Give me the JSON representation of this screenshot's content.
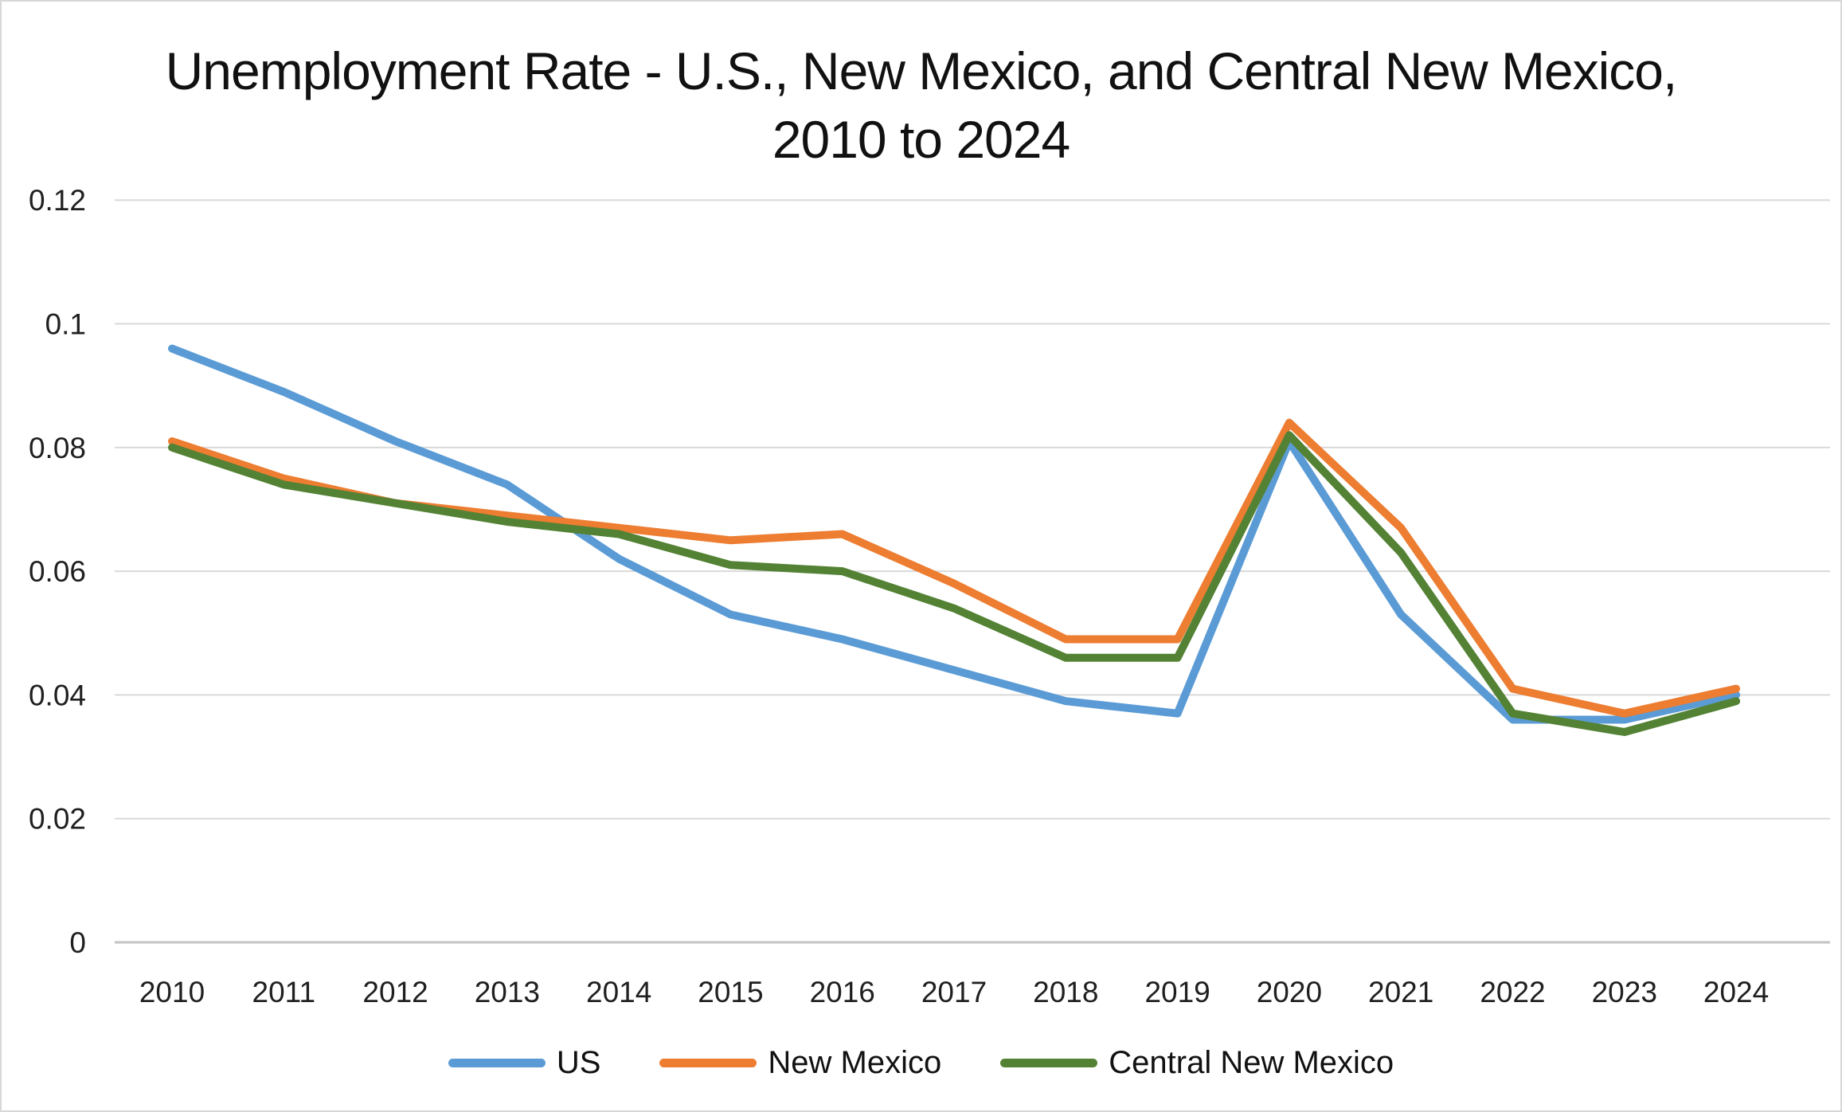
{
  "title": {
    "line1": "Unemployment Rate - U.S., New Mexico, and Central New Mexico,",
    "line2": "2010 to 2024"
  },
  "chart_data": {
    "type": "line",
    "title": "Unemployment Rate - U.S., New Mexico, and Central New Mexico, 2010 to 2024",
    "xlabel": "",
    "ylabel": "",
    "x": [
      2010,
      2011,
      2012,
      2013,
      2014,
      2015,
      2016,
      2017,
      2018,
      2019,
      2020,
      2021,
      2022,
      2023,
      2024
    ],
    "x_tick_labels": [
      "2010",
      "2011",
      "2012",
      "2013",
      "2014",
      "2015",
      "2016",
      "2017",
      "2018",
      "2019",
      "2020",
      "2021",
      "2022",
      "2023",
      "2024"
    ],
    "y_ticks": [
      {
        "label": "0.12",
        "value": 0.12
      },
      {
        "label": "0.1",
        "value": 0.1
      },
      {
        "label": "0.08",
        "value": 0.08
      },
      {
        "label": "0.06",
        "value": 0.06
      },
      {
        "label": "0.04",
        "value": 0.04
      },
      {
        "label": "0.02",
        "value": 0.02
      },
      {
        "label": "0",
        "value": 0
      }
    ],
    "ylim": [
      0,
      0.12
    ],
    "grid": "horizontal",
    "legend_position": "bottom",
    "series": [
      {
        "name": "US",
        "color": "#5B9BD5",
        "values": [
          0.096,
          0.089,
          0.081,
          0.074,
          0.062,
          0.053,
          0.049,
          0.044,
          0.039,
          0.037,
          0.081,
          0.053,
          0.036,
          0.036,
          0.04
        ]
      },
      {
        "name": "New Mexico",
        "color": "#ED7D31",
        "values": [
          0.081,
          0.075,
          0.071,
          0.069,
          0.067,
          0.065,
          0.066,
          0.058,
          0.049,
          0.049,
          0.084,
          0.067,
          0.041,
          0.037,
          0.041
        ]
      },
      {
        "name": "Central New Mexico",
        "color": "#548235",
        "values": [
          0.08,
          0.074,
          0.071,
          0.068,
          0.066,
          0.061,
          0.06,
          0.054,
          0.046,
          0.046,
          0.082,
          0.063,
          0.037,
          0.034,
          0.039
        ]
      }
    ]
  },
  "colors": {
    "gridline": "#D9D9D9",
    "axis_line": "#C3C3C3",
    "text": "#1F1F1F",
    "background": "#FFFFFF",
    "border": "#D8D8D8"
  }
}
